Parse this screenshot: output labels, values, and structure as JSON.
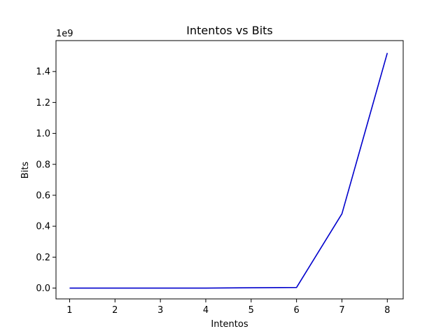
{
  "chart_data": {
    "type": "line",
    "title": "Intentos vs Bits",
    "xlabel": "Intentos",
    "ylabel": "Bits",
    "y_offset_label": "1e9",
    "x": [
      1,
      2,
      3,
      4,
      5,
      6,
      7,
      8
    ],
    "series": [
      {
        "color": "#0000cc",
        "values": [
          0,
          0,
          0,
          0,
          2000000,
          4000000,
          480000000,
          1520000000
        ]
      }
    ],
    "xlim": [
      0.7,
      8.35
    ],
    "ylim": [
      -70000000,
      1600000000
    ],
    "x_ticks": [
      "1",
      "2",
      "3",
      "4",
      "5",
      "6",
      "7",
      "8"
    ],
    "y_ticks": [
      "0.0",
      "0.2",
      "0.4",
      "0.6",
      "0.8",
      "1.0",
      "1.2",
      "1.4"
    ],
    "grid": false,
    "legend": "none"
  }
}
